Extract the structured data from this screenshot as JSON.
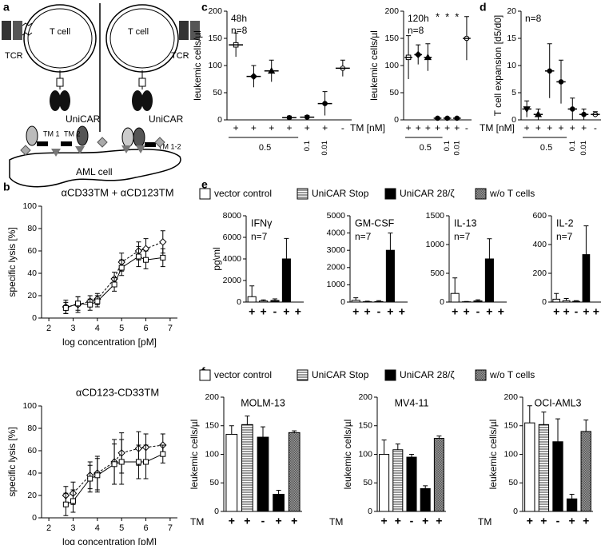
{
  "panels": [
    "a",
    "b",
    "c",
    "d",
    "e",
    "f"
  ],
  "diagram": {
    "left": {
      "cell": "T cell",
      "receptor": "TCR",
      "car": "UniCAR",
      "tm1": "TM 1",
      "tm2": "TM 2"
    },
    "right": {
      "cell": "T cell",
      "receptor": "TCR",
      "car": "UniCAR",
      "tm": "TM 1-2"
    },
    "target": "AML cell"
  },
  "legends": [
    {
      "names": [
        "vector control",
        "UniCAR Stop",
        "UniCAR 28/ζ",
        "w/o T cells"
      ],
      "colors": [
        "white",
        "hstripe",
        "black",
        "checker"
      ]
    },
    {
      "names": [
        "vector control",
        "UniCAR Stop",
        "UniCAR 28/ζ",
        "w/o T cells"
      ],
      "colors": [
        "white",
        "hstripe",
        "black",
        "checker"
      ]
    }
  ],
  "chart_data": [
    {
      "type": "line",
      "title": "αCD33TM + αCD123TM",
      "xlabel": "log concentration [pM]",
      "ylabel": "specific lysis [%]",
      "x": [
        2.7,
        3.2,
        3.7,
        4.0,
        4.7,
        5.0,
        5.7,
        6.0,
        6.7
      ],
      "xlim": [
        1.7,
        7.3
      ],
      "xticks": [
        2,
        3,
        4,
        5,
        6,
        7
      ],
      "ylim": [
        0,
        100
      ],
      "yticks": [
        0,
        20,
        40,
        60,
        80,
        100
      ],
      "series": [
        {
          "marker": "diamond-open",
          "color": "#000000",
          "values": [
            10,
            12,
            15,
            17,
            35,
            50,
            60,
            62,
            68
          ],
          "errors": [
            6,
            7,
            5,
            5,
            6,
            8,
            8,
            9,
            10
          ]
        },
        {
          "marker": "square-open",
          "color": "#000000",
          "values": [
            9,
            13,
            12,
            15,
            30,
            45,
            55,
            52,
            54
          ],
          "errors": [
            5,
            6,
            5,
            5,
            6,
            7,
            9,
            8,
            8
          ]
        }
      ]
    },
    {
      "type": "line",
      "title": "αCD123-CD33TM",
      "xlabel": "log concentration [pM]",
      "ylabel": "specific lysis [%]",
      "x": [
        2.7,
        3.0,
        3.7,
        4.0,
        4.7,
        5.0,
        5.7,
        6.0,
        6.7
      ],
      "xlim": [
        1.7,
        7.3
      ],
      "xticks": [
        2,
        3,
        4,
        5,
        6,
        7
      ],
      "ylim": [
        0,
        100
      ],
      "yticks": [
        0,
        20,
        40,
        60,
        80,
        100
      ],
      "series": [
        {
          "marker": "diamond-open",
          "color": "#000000",
          "values": [
            20,
            22,
            38,
            40,
            50,
            58,
            62,
            63,
            65
          ],
          "errors": [
            8,
            10,
            12,
            15,
            20,
            18,
            15,
            12,
            10
          ]
        },
        {
          "marker": "square-open",
          "color": "#000000",
          "values": [
            12,
            15,
            35,
            38,
            48,
            50,
            50,
            50,
            57
          ],
          "errors": [
            10,
            10,
            12,
            15,
            18,
            20,
            15,
            15,
            8
          ]
        }
      ]
    },
    {
      "type": "dot",
      "ylabel": "leukemic cells/µl",
      "notes": [
        "48h",
        "n=8"
      ],
      "categories": [
        "+",
        "+",
        "+",
        "+",
        "+",
        "+",
        "-"
      ],
      "doses": [
        "0.5",
        "0.1",
        "0.01"
      ],
      "markers": [
        "square-open",
        "diamond",
        "triangle",
        "circle",
        "circle",
        "circle",
        "circle-open"
      ],
      "values": [
        138,
        80,
        90,
        4,
        5,
        30,
        95
      ],
      "errors": [
        22,
        20,
        20,
        3,
        3,
        22,
        15
      ],
      "ylim": [
        0,
        200
      ],
      "yticks": [
        0,
        50,
        100,
        150,
        200
      ]
    },
    {
      "type": "dot",
      "ylabel": "leukemic cells/µl",
      "notes": [
        "120h",
        "n=8"
      ],
      "tm_label": "TM [nM]",
      "categories": [
        "+",
        "+",
        "+",
        "+",
        "+",
        "+",
        "-"
      ],
      "doses": [
        "0.5",
        "0.1",
        "0.01"
      ],
      "stars": [
        null,
        null,
        null,
        "*",
        "*",
        "*",
        null
      ],
      "markers": [
        "square-open",
        "diamond",
        "triangle",
        "circle",
        "circle",
        "circle",
        "circle-open"
      ],
      "values": [
        115,
        120,
        115,
        3,
        3,
        3,
        150
      ],
      "errors": [
        40,
        18,
        25,
        2,
        2,
        2,
        40
      ],
      "ylim": [
        0,
        200
      ],
      "yticks": [
        0,
        50,
        100,
        150,
        200
      ]
    },
    {
      "type": "dot",
      "ylabel": "T cell expansion [d5/d0]",
      "notes": [
        "n=8"
      ],
      "tm_label": "TM [nM]",
      "categories": [
        "+",
        "+",
        "+",
        "+",
        "+",
        "+",
        "-"
      ],
      "doses": [
        "0.5",
        "0.1",
        "0.01"
      ],
      "markers": [
        "triangle-down",
        "triangle",
        "circle",
        "circle",
        "circle",
        "circle",
        "circle-open"
      ],
      "values": [
        2,
        1,
        9,
        7,
        2,
        1,
        1
      ],
      "errors": [
        1.5,
        1,
        5,
        4,
        2,
        1,
        0.5
      ],
      "ylim": [
        0,
        20
      ],
      "yticks": [
        0,
        5,
        10,
        15,
        20
      ]
    },
    {
      "type": "bar",
      "title": "IFNγ",
      "note": "n=7",
      "ylabel": "pg\\ml",
      "categories": [
        "+",
        "+",
        "-",
        "+",
        "+"
      ],
      "colors": [
        "white",
        "hstripe",
        "black",
        "black",
        "checker"
      ],
      "values": [
        500,
        100,
        150,
        4000,
        0
      ],
      "errors": [
        1000,
        100,
        150,
        1900,
        0
      ],
      "ylim": [
        0,
        8000
      ],
      "yticks": [
        0,
        2000,
        4000,
        6000,
        8000
      ]
    },
    {
      "type": "bar",
      "title": "GM-CSF",
      "note": "n=7",
      "categories": [
        "+",
        "+",
        "-",
        "+",
        "+"
      ],
      "colors": [
        "white",
        "hstripe",
        "black",
        "black",
        "checker"
      ],
      "values": [
        100,
        20,
        30,
        3000,
        0
      ],
      "errors": [
        150,
        30,
        50,
        1000,
        0
      ],
      "ylim": [
        0,
        5000
      ],
      "yticks": [
        0,
        1000,
        2000,
        3000,
        4000,
        5000
      ]
    },
    {
      "type": "bar",
      "title": "IL-13",
      "note": "n=7",
      "categories": [
        "+",
        "+",
        "-",
        "+",
        "+"
      ],
      "colors": [
        "white",
        "hstripe",
        "black",
        "black",
        "checker"
      ],
      "values": [
        150,
        5,
        20,
        750,
        0
      ],
      "errors": [
        270,
        5,
        20,
        350,
        0
      ],
      "ylim": [
        0,
        1500
      ],
      "yticks": [
        0,
        500,
        1000,
        1500
      ]
    },
    {
      "type": "bar",
      "title": "IL-2",
      "note": "n=7",
      "categories": [
        "+",
        "+",
        "-",
        "+",
        "+"
      ],
      "colors": [
        "white",
        "hstripe",
        "black",
        "black",
        "checker"
      ],
      "values": [
        20,
        10,
        5,
        330,
        0
      ],
      "errors": [
        40,
        15,
        5,
        200,
        0
      ],
      "ylim": [
        0,
        600
      ],
      "yticks": [
        0,
        200,
        400,
        600
      ]
    },
    {
      "type": "bar",
      "title": "MOLM-13",
      "ylabel": "leukemic cells/µl",
      "tm_label": "TM",
      "categories": [
        "+",
        "+",
        "-",
        "+",
        "+"
      ],
      "colors": [
        "white",
        "hstripe",
        "black",
        "black",
        "checker"
      ],
      "values": [
        135,
        152,
        130,
        30,
        138
      ],
      "errors": [
        15,
        15,
        18,
        7,
        3
      ],
      "ylim": [
        0,
        200
      ],
      "yticks": [
        0,
        50,
        100,
        150,
        200
      ]
    },
    {
      "type": "bar",
      "title": "MV4-11",
      "ylabel": "leukemic cells/µl",
      "tm_label": "TM",
      "categories": [
        "+",
        "+",
        "-",
        "+",
        "+"
      ],
      "colors": [
        "white",
        "hstripe",
        "black",
        "black",
        "checker"
      ],
      "values": [
        100,
        108,
        95,
        40,
        128
      ],
      "errors": [
        25,
        10,
        5,
        5,
        4
      ],
      "ylim": [
        0,
        200
      ],
      "yticks": [
        0,
        50,
        100,
        150,
        200
      ]
    },
    {
      "type": "bar",
      "title": "OCI-AML3",
      "ylabel": "leukemic cells/µl",
      "tm_label": "TM",
      "categories": [
        "+",
        "+",
        "-",
        "+",
        "+"
      ],
      "colors": [
        "white",
        "hstripe",
        "black",
        "black",
        "checker"
      ],
      "values": [
        155,
        152,
        122,
        22,
        140
      ],
      "errors": [
        30,
        22,
        40,
        8,
        20
      ],
      "ylim": [
        0,
        200
      ],
      "yticks": [
        0,
        50,
        100,
        150,
        200
      ]
    }
  ]
}
